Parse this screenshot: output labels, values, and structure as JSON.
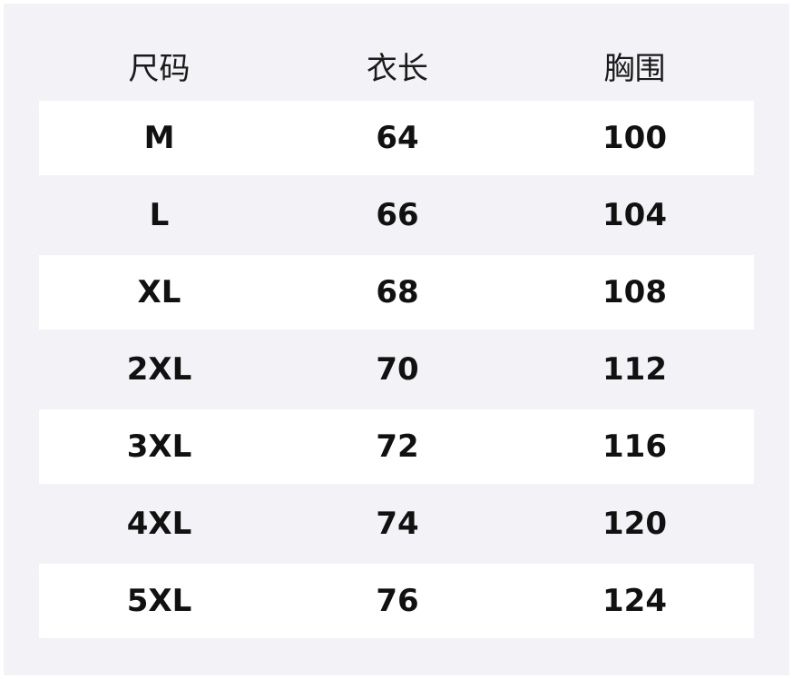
{
  "table": {
    "headers": [
      "尺码",
      "衣长",
      "胸围"
    ],
    "rows": [
      [
        "M",
        "64",
        "100"
      ],
      [
        "L",
        "66",
        "104"
      ],
      [
        "XL",
        "68",
        "108"
      ],
      [
        "2XL",
        "70",
        "112"
      ],
      [
        "3XL",
        "72",
        "116"
      ],
      [
        "4XL",
        "74",
        "120"
      ],
      [
        "5XL",
        "76",
        "124"
      ]
    ]
  },
  "colors": {
    "background": "#f3f3f7",
    "stripe": "#ffffff",
    "text": "#111111"
  }
}
